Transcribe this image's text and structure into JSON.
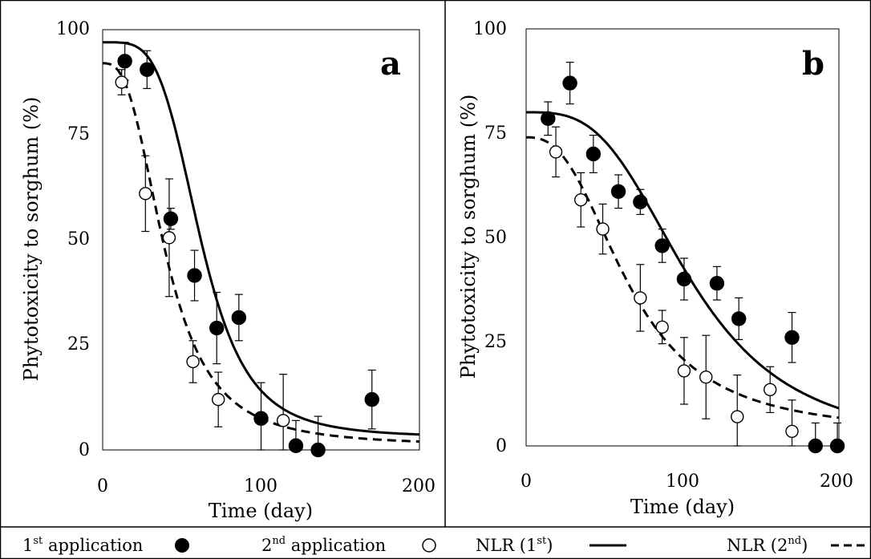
{
  "chart_data": [
    {
      "type": "scatter",
      "panel_label": "a",
      "xlabel": "Time (day)",
      "ylabel": "Phytotoxicity to sorghum (%)",
      "xlim": [
        0,
        200
      ],
      "ylim": [
        0,
        100
      ],
      "x_ticks": [
        "0",
        "100",
        "200"
      ],
      "y_ticks": [
        "0",
        "25",
        "50",
        "75",
        "100"
      ],
      "grid": false,
      "series": [
        {
          "name": "1st application",
          "marker": "filled-circle",
          "points": [
            {
              "x": 14,
              "y": 92.5,
              "err": 4.5
            },
            {
              "x": 28,
              "y": 90.5,
              "err": 4.5
            },
            {
              "x": 43,
              "y": 55,
              "err": 2.5
            },
            {
              "x": 58,
              "y": 41.5,
              "err": 6
            },
            {
              "x": 72,
              "y": 29,
              "err": 8.5
            },
            {
              "x": 86,
              "y": 31.5,
              "err": 5.5
            },
            {
              "x": 100,
              "y": 7.5,
              "err": 8.5
            },
            {
              "x": 122,
              "y": 1,
              "err": 6
            },
            {
              "x": 136,
              "y": 0,
              "err": 8
            },
            {
              "x": 170,
              "y": 12,
              "err": 7
            }
          ]
        },
        {
          "name": "2nd application",
          "marker": "open-circle",
          "points": [
            {
              "x": 12,
              "y": 87.5,
              "err": 3
            },
            {
              "x": 27,
              "y": 61,
              "err": 9
            },
            {
              "x": 42,
              "y": 50.5,
              "err": 14
            },
            {
              "x": 57,
              "y": 21,
              "err": 5
            },
            {
              "x": 73,
              "y": 12,
              "err": 6.5
            },
            {
              "x": 114,
              "y": 7,
              "err": 11
            }
          ]
        }
      ],
      "fits": [
        {
          "name": "NLR (1st)",
          "style": "solid",
          "top": 97,
          "bottom": 3,
          "x50": 62,
          "hill": 4.2
        },
        {
          "name": "NLR (2nd)",
          "style": "dashed",
          "top": 92,
          "bottom": 1,
          "x50": 40,
          "hill": 2.8
        }
      ]
    },
    {
      "type": "scatter",
      "panel_label": "b",
      "xlabel": "Time (day)",
      "ylabel": "Phytotoxicity to sorghum (%)",
      "xlim": [
        0,
        200
      ],
      "ylim": [
        0,
        100
      ],
      "x_ticks": [
        "0",
        "100",
        "200"
      ],
      "y_ticks": [
        "0",
        "25",
        "50",
        "75",
        "100"
      ],
      "grid": false,
      "series": [
        {
          "name": "1st application",
          "marker": "filled-circle",
          "points": [
            {
              "x": 14,
              "y": 78.5,
              "err": 4
            },
            {
              "x": 28,
              "y": 87,
              "err": 5
            },
            {
              "x": 43,
              "y": 70,
              "err": 4.5
            },
            {
              "x": 59,
              "y": 61,
              "err": 4
            },
            {
              "x": 73,
              "y": 58.5,
              "err": 3
            },
            {
              "x": 87,
              "y": 48,
              "err": 4
            },
            {
              "x": 101,
              "y": 40,
              "err": 5
            },
            {
              "x": 122,
              "y": 39,
              "err": 4
            },
            {
              "x": 136,
              "y": 30.5,
              "err": 5
            },
            {
              "x": 170,
              "y": 26,
              "err": 6
            },
            {
              "x": 185,
              "y": 0,
              "err": 5.5
            },
            {
              "x": 199,
              "y": 0,
              "err": 5.5
            }
          ]
        },
        {
          "name": "2nd application",
          "marker": "open-circle",
          "points": [
            {
              "x": 19,
              "y": 70.5,
              "err": 6
            },
            {
              "x": 35,
              "y": 59,
              "err": 6.5
            },
            {
              "x": 49,
              "y": 52,
              "err": 6
            },
            {
              "x": 73,
              "y": 35.5,
              "err": 8
            },
            {
              "x": 87,
              "y": 28.5,
              "err": 4
            },
            {
              "x": 101,
              "y": 18,
              "err": 8
            },
            {
              "x": 115,
              "y": 16.5,
              "err": 10
            },
            {
              "x": 135,
              "y": 7,
              "err": 10
            },
            {
              "x": 156,
              "y": 13.5,
              "err": 5.5
            },
            {
              "x": 170,
              "y": 3.5,
              "err": 7.5
            }
          ]
        }
      ],
      "fits": [
        {
          "name": "NLR (1st)",
          "style": "solid",
          "top": 80,
          "bottom": 0,
          "x50": 105,
          "hill": 3.2
        },
        {
          "name": "NLR (2nd)",
          "style": "dashed",
          "top": 74,
          "bottom": 3,
          "x50": 66,
          "hill": 2.6
        }
      ]
    }
  ],
  "legend": {
    "items": [
      {
        "text": "1",
        "sup": "st",
        "suffix": " application",
        "symbol": "filled-circle"
      },
      {
        "text": "2",
        "sup": "nd",
        "suffix": " application",
        "symbol": "open-circle"
      },
      {
        "text": "NLR (1",
        "sup": "st",
        "suffix": ")",
        "symbol": "solid-line"
      },
      {
        "text": "NLR (2",
        "sup": "nd",
        "suffix": ")",
        "symbol": "dashed-line"
      }
    ]
  }
}
